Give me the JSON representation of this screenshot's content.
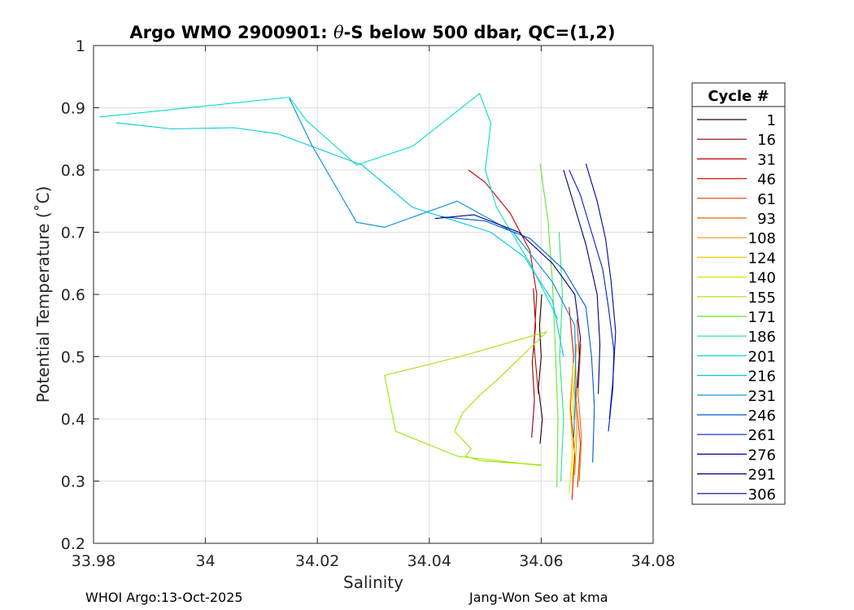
{
  "chart_data": {
    "type": "line",
    "title_prefix": "Argo WMO 2900901: ",
    "title_symbol": "θ",
    "title_suffix": "-S below 500 dbar,  QC=(1,2)",
    "xlabel": "Salinity",
    "ylabel": "Potential Temperature (˚C)",
    "xlim": [
      33.98,
      34.08
    ],
    "ylim": [
      0.2,
      1.0
    ],
    "x_ticks": [
      33.98,
      34.0,
      34.02,
      34.04,
      34.06,
      34.08
    ],
    "x_tick_labels": [
      "33.98",
      "34",
      "34.02",
      "34.04",
      "34.06",
      "34.08"
    ],
    "y_ticks": [
      0.2,
      0.3,
      0.4,
      0.5,
      0.6,
      0.7,
      0.8,
      0.9,
      1.0
    ],
    "y_tick_labels": [
      "0.2",
      "0.3",
      "0.4",
      "0.5",
      "0.6",
      "0.7",
      "0.8",
      "0.9",
      "1"
    ],
    "grid": true,
    "legend_title": "Cycle #",
    "legend_placement": "right-outside",
    "series": [
      {
        "name": "1",
        "color": "#2a0000",
        "x": [
          34.0598,
          34.0602,
          34.0595,
          34.06,
          34.0597,
          34.0601
        ],
        "y": [
          0.36,
          0.4,
          0.45,
          0.5,
          0.55,
          0.6
        ]
      },
      {
        "name": "16",
        "color": "#8c0000",
        "x": [
          34.0583,
          34.0588,
          34.0584,
          34.059,
          34.0586
        ],
        "y": [
          0.37,
          0.43,
          0.49,
          0.55,
          0.61
        ]
      },
      {
        "name": "31",
        "color": "#c00000",
        "x": [
          34.047,
          34.05,
          34.0545,
          34.058,
          34.0592,
          34.0587,
          34.0595
        ],
        "y": [
          0.8,
          0.78,
          0.73,
          0.67,
          0.6,
          0.52,
          0.44
        ]
      },
      {
        "name": "46",
        "color": "#d81a00",
        "x": [
          34.0655,
          34.066,
          34.0652,
          34.0658,
          34.065
        ],
        "y": [
          0.27,
          0.34,
          0.42,
          0.5,
          0.58
        ]
      },
      {
        "name": "61",
        "color": "#e23c00",
        "x": [
          34.0665,
          34.067,
          34.0662,
          34.0668,
          34.0664
        ],
        "y": [
          0.29,
          0.36,
          0.43,
          0.5,
          0.56
        ]
      },
      {
        "name": "93",
        "color": "#e86800",
        "x": [
          34.0668,
          34.0672,
          34.0666,
          34.0671
        ],
        "y": [
          0.3,
          0.37,
          0.44,
          0.52
        ]
      },
      {
        "name": "108",
        "color": "#f09a00",
        "x": [
          34.066,
          34.0664,
          34.0659,
          34.0663
        ],
        "y": [
          0.31,
          0.38,
          0.45,
          0.52
        ]
      },
      {
        "name": "124",
        "color": "#f5d000",
        "x": [
          34.0655,
          34.0661,
          34.0656,
          34.0662
        ],
        "y": [
          0.3,
          0.37,
          0.43,
          0.5
        ]
      },
      {
        "name": "140",
        "color": "#e0e800",
        "x": [
          34.065,
          34.0656,
          34.0651,
          34.0657
        ],
        "y": [
          0.28,
          0.35,
          0.42,
          0.49
        ]
      },
      {
        "name": "155",
        "color": "#9fe600",
        "x": [
          34.06,
          34.049,
          34.0465,
          34.0475,
          34.0445,
          34.046,
          34.049,
          34.0522,
          34.061,
          34.0455,
          34.032,
          34.034,
          34.045,
          34.06
        ],
        "y": [
          0.326,
          0.333,
          0.34,
          0.352,
          0.38,
          0.41,
          0.438,
          0.463,
          0.54,
          0.5,
          0.47,
          0.38,
          0.34,
          0.325
        ]
      },
      {
        "name": "171",
        "color": "#5ee82a",
        "x": [
          34.0598,
          34.0612,
          34.062,
          34.0625,
          34.063,
          34.0628
        ],
        "y": [
          0.81,
          0.72,
          0.62,
          0.52,
          0.4,
          0.29
        ]
      },
      {
        "name": "186",
        "color": "#2ee080",
        "x": [
          34.0635,
          34.064,
          34.0633,
          34.0638,
          34.0632
        ],
        "y": [
          0.3,
          0.4,
          0.5,
          0.6,
          0.7
        ]
      },
      {
        "name": "201",
        "color": "#00e0c0",
        "x": [
          33.981,
          34.015,
          34.018,
          34.027,
          34.037,
          34.049,
          34.051,
          34.05,
          34.052,
          34.058,
          34.063
        ],
        "y": [
          0.885,
          0.917,
          0.88,
          0.808,
          0.838,
          0.923,
          0.875,
          0.8,
          0.74,
          0.65,
          0.56
        ]
      },
      {
        "name": "216",
        "color": "#00c8e0",
        "x": [
          33.984,
          33.994,
          34.005,
          34.013,
          34.028,
          34.037,
          34.044,
          34.051,
          34.057,
          34.062,
          34.064
        ],
        "y": [
          0.876,
          0.866,
          0.868,
          0.858,
          0.808,
          0.74,
          0.72,
          0.7,
          0.66,
          0.59,
          0.5
        ]
      },
      {
        "name": "231",
        "color": "#0090d8",
        "x": [
          34.015,
          34.019,
          34.027,
          34.032,
          34.045,
          34.055,
          34.062,
          34.066,
          34.0662,
          34.0658
        ],
        "y": [
          0.915,
          0.84,
          0.716,
          0.708,
          0.75,
          0.7,
          0.62,
          0.55,
          0.46,
          0.37
        ]
      },
      {
        "name": "246",
        "color": "#0058d0",
        "x": [
          34.042,
          34.05,
          34.058,
          34.064,
          34.068,
          34.069,
          34.0695,
          34.0692
        ],
        "y": [
          0.725,
          0.718,
          0.69,
          0.64,
          0.58,
          0.5,
          0.42,
          0.33
        ]
      },
      {
        "name": "261",
        "color": "#0020c8",
        "x": [
          34.065,
          34.067,
          34.069,
          34.071,
          34.072,
          34.073,
          34.0728,
          34.072
        ],
        "y": [
          0.8,
          0.76,
          0.7,
          0.64,
          0.58,
          0.51,
          0.45,
          0.38
        ]
      },
      {
        "name": "276",
        "color": "#0000a8",
        "x": [
          34.068,
          34.07,
          34.0715,
          34.0725,
          34.0733,
          34.0728,
          34.0722
        ],
        "y": [
          0.81,
          0.75,
          0.69,
          0.62,
          0.54,
          0.46,
          0.4
        ]
      },
      {
        "name": "291",
        "color": "#00006e",
        "x": [
          34.064,
          34.066,
          34.068,
          34.07,
          34.0705,
          34.0702
        ],
        "y": [
          0.8,
          0.74,
          0.68,
          0.6,
          0.52,
          0.44
        ]
      },
      {
        "name": "306",
        "color": "#00008c",
        "x": [
          34.041,
          34.048,
          34.056,
          34.062,
          34.066,
          34.067,
          34.0665
        ],
        "y": [
          0.722,
          0.728,
          0.7,
          0.65,
          0.6,
          0.53,
          0.45
        ]
      }
    ]
  },
  "footer": {
    "left": "WHOI Argo:13-Oct-2025",
    "right": "Jang-Won Seo at kma"
  }
}
